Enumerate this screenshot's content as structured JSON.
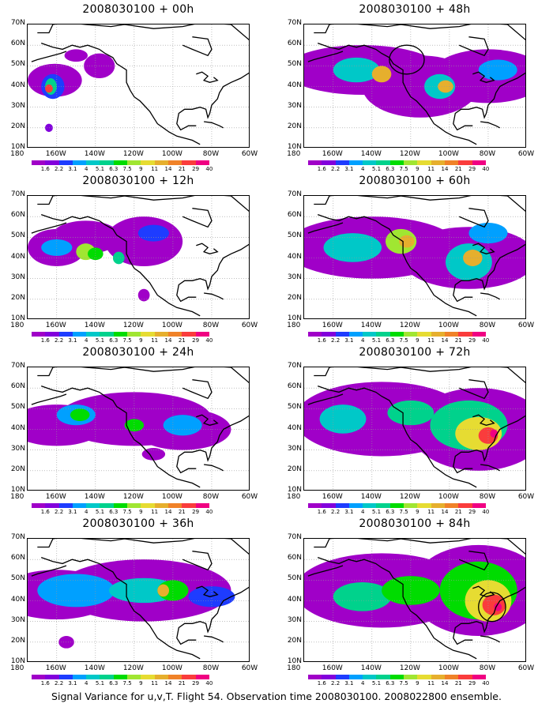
{
  "panels": [
    {
      "title": "2008030100 + 00h",
      "col": 0,
      "row": 0
    },
    {
      "title": "2008030100 + 12h",
      "col": 0,
      "row": 1
    },
    {
      "title": "2008030100 + 24h",
      "col": 0,
      "row": 2
    },
    {
      "title": "2008030100 + 36h",
      "col": 0,
      "row": 3
    },
    {
      "title": "2008030100 + 48h",
      "col": 1,
      "row": 0
    },
    {
      "title": "2008030100 + 60h",
      "col": 1,
      "row": 1
    },
    {
      "title": "2008030100 + 72h",
      "col": 1,
      "row": 2
    },
    {
      "title": "2008030100 + 84h",
      "col": 1,
      "row": 3
    }
  ],
  "axes": {
    "lat_labels": [
      "70N",
      "60N",
      "50N",
      "40N",
      "30N",
      "20N",
      "10N"
    ],
    "lon_labels": [
      "180",
      "160W",
      "140W",
      "120W",
      "100W",
      "80W",
      "60W"
    ]
  },
  "colorbar": {
    "labels": [
      "1.6",
      "2.2",
      "3.1",
      "4",
      "5.1",
      "6.3",
      "7.5",
      "9",
      "11",
      "14",
      "21",
      "29",
      "40"
    ],
    "colors": [
      "#a000c8",
      "#8200dc",
      "#1e3cff",
      "#00a0ff",
      "#00c8c8",
      "#00d28c",
      "#00dc00",
      "#a0e632",
      "#e6dc32",
      "#e6af2d",
      "#f08228",
      "#fa3c3c",
      "#f00082"
    ]
  },
  "caption": "Signal Variance for u,v,T. Flight 54. Observation time 2008030100. 2008022800 ensemble."
}
